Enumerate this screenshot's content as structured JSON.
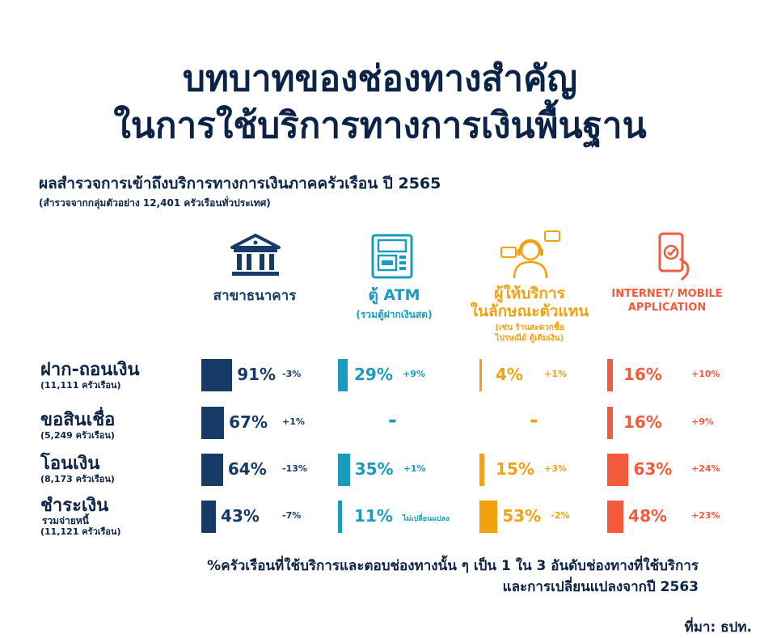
{
  "title_line1": "บทบาทของช่องทางสำคัญ",
  "title_line2": "ในการใช้บริการทางการเงินพื้นฐาน",
  "subtitle": "ผลสำรวจการเข้าถึงบริการทางการเงินภาคครัวเรือน ปี 2565",
  "subnote": "(สำรวจจากกลุ่มตัวอย่าง 12,401 ครัวเรือนทั่วประเทศ)",
  "columns": [
    {
      "label1": "สาขาธนาคาร",
      "label2": "",
      "note": "",
      "icon": "bank-icon",
      "color": "#163b66"
    },
    {
      "label1": "ตู้ ATM",
      "label2": "(รวมตู้ฝากเงินสด)",
      "note": "",
      "icon": "atm-icon",
      "color": "#1a9bbd"
    },
    {
      "label1": "ผู้ให้บริการ",
      "label2": "ในลักษณะตัวแทน",
      "note": "(เช่น ร้านสะดวกซื้อ ไปรษณีย์ ตู้เติมเงิน)",
      "icon": "agent-icon",
      "color": "#f2a10f"
    },
    {
      "label1": "INTERNET/ MOBILE",
      "label2": "APPLICATION",
      "note": "",
      "icon": "mobile-icon",
      "color": "#f45a3c"
    }
  ],
  "rows": [
    {
      "label": "ฝาก-ถอนเงิน",
      "label2": "",
      "sub": "(11,111 ครัวเรือน)"
    },
    {
      "label": "ขอสินเชื่อ",
      "label2": "",
      "sub": "(5,249 ครัวเรือน)"
    },
    {
      "label": "โอนเงิน",
      "label2": "",
      "sub": "(8,173 ครัวเรือน)"
    },
    {
      "label": "ชำระเงิน",
      "label2": "รวมจ่ายหนี้",
      "sub": "(11,121 ครัวเรือน)"
    }
  ],
  "chart_data": {
    "type": "table",
    "title": "บทบาทของช่องทางสำคัญ ในการใช้บริการทางการเงินพื้นฐาน",
    "categories": [
      "ฝาก-ถอนเงิน",
      "ขอสินเชื่อ",
      "โอนเงิน",
      "ชำระเงิน รวมจ่ายหนี้"
    ],
    "series": [
      {
        "name": "สาขาธนาคาร",
        "values": [
          91,
          67,
          64,
          43
        ],
        "labels": [
          "91%",
          "67%",
          "64%",
          "43%"
        ],
        "changes": [
          "-3%",
          "+1%",
          "-13%",
          "-7%"
        ]
      },
      {
        "name": "ตู้ ATM",
        "values": [
          29,
          null,
          35,
          11
        ],
        "labels": [
          "29%",
          "-",
          "35%",
          "11%"
        ],
        "changes": [
          "+9%",
          "",
          "+1%",
          "ไม่เปลี่ยนแปลง"
        ]
      },
      {
        "name": "ผู้ให้บริการในลักษณะตัวแทน",
        "values": [
          4,
          null,
          15,
          53
        ],
        "labels": [
          "4%",
          "-",
          "15%",
          "53%"
        ],
        "changes": [
          "+1%",
          "",
          "+3%",
          "-2%"
        ]
      },
      {
        "name": "INTERNET/ MOBILE APPLICATION",
        "values": [
          16,
          16,
          63,
          48
        ],
        "labels": [
          "16%",
          "16%",
          "63%",
          "48%"
        ],
        "changes": [
          "+10%",
          "+9%",
          "+24%",
          "+23%"
        ]
      }
    ]
  },
  "footnote_line1": "%ครัวเรือนที่ใช้บริการและตอบช่องทางนั้น ๆ เป็น 1 ใน 3 อันดับช่องทางที่ใช้บริการ",
  "footnote_line2": "และการเปลี่ยนแปลงจากปี 2563",
  "source": "ที่มา: ธปท."
}
